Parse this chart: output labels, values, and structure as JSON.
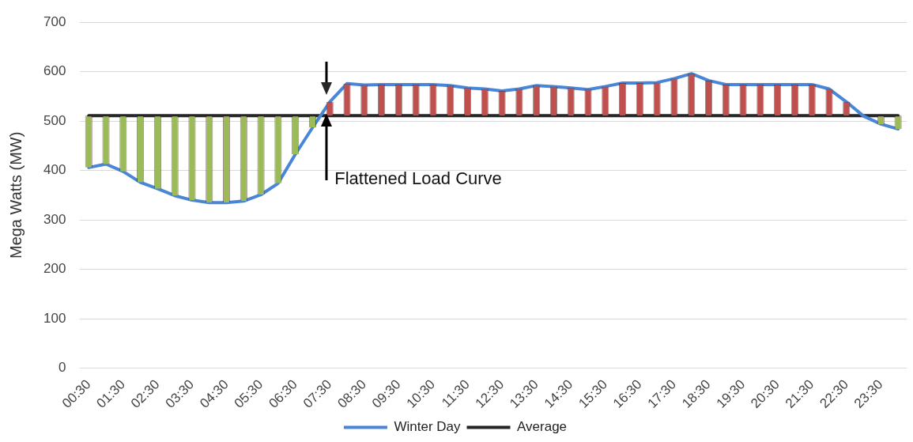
{
  "chart_data": {
    "type": "bar",
    "ylabel": "Mega Watts (MW)",
    "categories": [
      "00:30",
      null,
      "01:30",
      null,
      "02:30",
      null,
      "03:30",
      null,
      "04:30",
      null,
      "05:30",
      null,
      "06:30",
      null,
      "07:30",
      null,
      "08:30",
      null,
      "09:30",
      null,
      "10:30",
      null,
      "11:30",
      null,
      "12:30",
      null,
      "13:30",
      null,
      "14:30",
      null,
      "15:30",
      null,
      "16:30",
      null,
      "17:30",
      null,
      "18:30",
      null,
      "19:30",
      null,
      "20:30",
      null,
      "21:30",
      null,
      "22:30",
      null,
      "23:30",
      null
    ],
    "series": [
      {
        "base": [
          511,
          511,
          511,
          511,
          511,
          511,
          511,
          511,
          511,
          511,
          511,
          511,
          511,
          511,
          511,
          511,
          511,
          511,
          511,
          511,
          511,
          511,
          511,
          511,
          511,
          511,
          511,
          511,
          511,
          511,
          511,
          511,
          511,
          511,
          511,
          511,
          511,
          511,
          511,
          511,
          511,
          511,
          511,
          511,
          511,
          null,
          511,
          511
        ],
        "values": [
          -105,
          -98,
          -113,
          -135,
          -148,
          -162,
          -171,
          -176,
          -176,
          -173,
          -160,
          -137,
          -78,
          -24,
          28,
          65,
          62,
          63,
          63,
          63,
          63,
          61,
          56,
          54,
          50,
          54,
          61,
          59,
          56,
          53,
          59,
          66,
          66,
          67,
          75,
          85,
          71,
          63,
          63,
          63,
          63,
          63,
          63,
          54,
          28,
          null,
          -17,
          -27
        ],
        "colors": [
          "#9bbb59",
          "#9bbb59",
          "#9bbb59",
          "#9bbb59",
          "#9bbb59",
          "#9bbb59",
          "#9bbb59",
          "#9bbb59",
          "#9bbb59",
          "#9bbb59",
          "#9bbb59",
          "#9bbb59",
          "#9bbb59",
          "#9bbb59",
          "#c0504d",
          "#c0504d",
          "#c0504d",
          "#c0504d",
          "#c0504d",
          "#c0504d",
          "#c0504d",
          "#c0504d",
          "#c0504d",
          "#c0504d",
          "#c0504d",
          "#c0504d",
          "#c0504d",
          "#c0504d",
          "#c0504d",
          "#c0504d",
          "#c0504d",
          "#c0504d",
          "#c0504d",
          "#c0504d",
          "#c0504d",
          "#c0504d",
          "#c0504d",
          "#c0504d",
          "#c0504d",
          "#c0504d",
          "#c0504d",
          "#c0504d",
          "#c0504d",
          "#c0504d",
          "#c0504d",
          "#9bbb59",
          "#9bbb59",
          "#9bbb59"
        ]
      },
      {
        "type": "line",
        "name": "Winter Day",
        "color": "#4a86d8",
        "values": [
          406,
          413,
          398,
          376,
          363,
          349,
          340,
          335,
          335,
          338,
          351,
          374,
          433,
          487,
          539,
          576,
          573,
          574,
          574,
          574,
          574,
          572,
          567,
          565,
          561,
          565,
          572,
          570,
          567,
          564,
          570,
          577,
          577,
          578,
          586,
          596,
          582,
          574,
          574,
          574,
          574,
          574,
          574,
          565,
          539,
          510,
          494,
          484
        ]
      },
      {
        "type": "line",
        "name": "Average",
        "color": "#262626",
        "values": [
          511,
          511,
          511,
          511,
          511,
          511,
          511,
          511,
          511,
          511,
          511,
          511,
          511,
          511,
          511,
          511,
          511,
          511,
          511,
          511,
          511,
          511,
          511,
          511,
          511,
          511,
          511,
          511,
          511,
          511,
          511,
          511,
          511,
          511,
          511,
          511,
          511,
          511,
          511,
          511,
          511,
          511,
          511,
          511,
          511,
          511,
          511,
          511
        ]
      }
    ],
    "ylim": [
      0,
      700
    ],
    "yticks": [
      0,
      100,
      200,
      300,
      400,
      500,
      600,
      700
    ],
    "grid": "y",
    "legend": "bottom",
    "marker": "none",
    "line_style": "solid",
    "annotations": [
      "Flattened Load Curve"
    ]
  }
}
